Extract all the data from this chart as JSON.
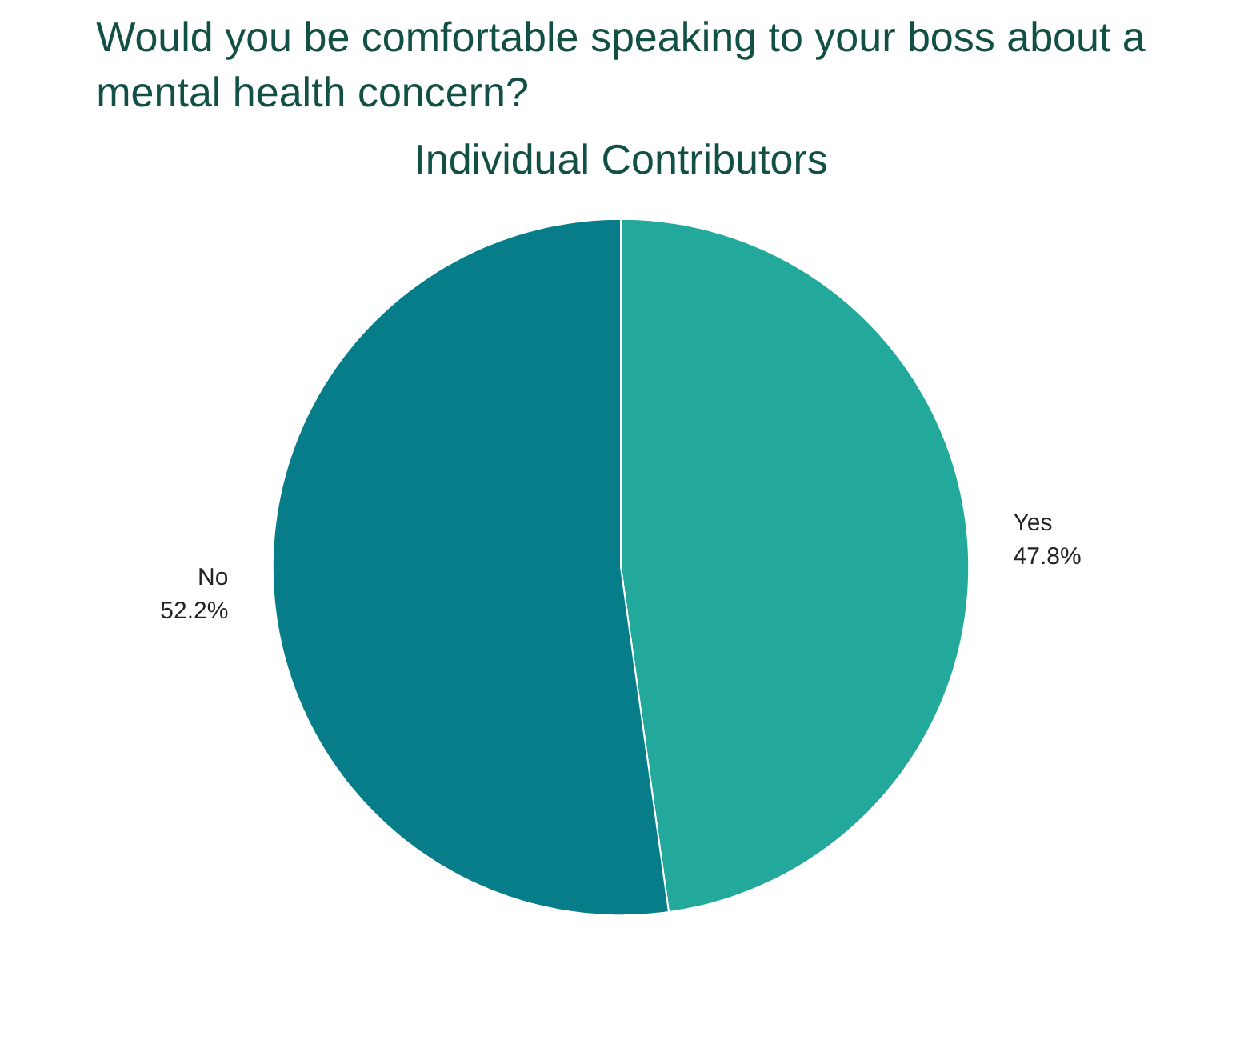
{
  "chart_data": {
    "type": "pie",
    "title": "Would you be comfortable speaking to your boss about a mental health concern?",
    "subtitle": "Individual Contributors",
    "categories": [
      "Yes",
      "No"
    ],
    "values": [
      47.8,
      52.2
    ],
    "colors": [
      "#23a99c",
      "#087d8a"
    ],
    "value_labels": [
      "47.8%",
      "52.2%"
    ]
  }
}
